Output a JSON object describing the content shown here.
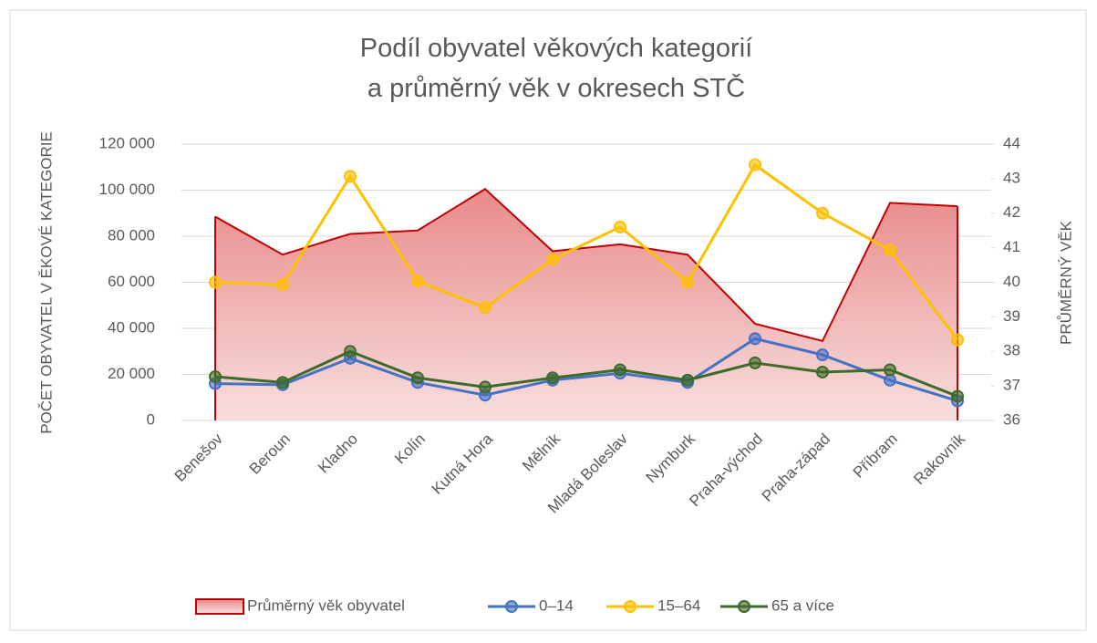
{
  "chart_data": {
    "type": "combo",
    "title": [
      "Podíl obyvatel věkových kategorií",
      "a průměrný  věk v okresech  STČ"
    ],
    "y_label": "POČET OBYVATEL V ĚKOVÉ KATEGORIE",
    "y2_label": "PRŮMĚRNÝ VĚK",
    "categories": [
      "Benešov",
      "Beroun",
      "Kladno",
      "Kolín",
      "Kutná Hora",
      "Mělník",
      "Mladá Boleslav",
      "Nymburk",
      "Praha-východ",
      "Praha-západ",
      "Příbram",
      "Rakovník"
    ],
    "ylim": [
      0,
      120000
    ],
    "yticks": [
      {
        "value": 0,
        "label": "0"
      },
      {
        "value": 20000,
        "label": "20 000"
      },
      {
        "value": 40000,
        "label": "40 000"
      },
      {
        "value": 60000,
        "label": "60 000"
      },
      {
        "value": 80000,
        "label": "80 000"
      },
      {
        "value": 100000,
        "label": "100 000"
      },
      {
        "value": 120000,
        "label": "120 000"
      }
    ],
    "y2lim": [
      36,
      44
    ],
    "y2ticks": [
      36,
      37,
      38,
      39,
      40,
      41,
      42,
      43,
      44
    ],
    "grid": true,
    "legend": "bottom",
    "series": [
      {
        "name": "Průměrný věk obyvatel",
        "type": "area",
        "axis": "y2",
        "color": "#c00000",
        "values": [
          41.9,
          40.8,
          41.4,
          41.5,
          42.7,
          40.9,
          41.1,
          40.8,
          38.8,
          38.3,
          42.3,
          42.2
        ]
      },
      {
        "name": "0–14",
        "type": "line",
        "color": "#4472c4",
        "values": [
          16000,
          15500,
          27000,
          16500,
          11000,
          17500,
          20500,
          16500,
          35500,
          28500,
          17500,
          8500
        ]
      },
      {
        "name": "15–64",
        "type": "line",
        "color": "#ffc000",
        "values": [
          60000,
          59000,
          106000,
          60500,
          49000,
          70000,
          84000,
          60000,
          111000,
          90000,
          74000,
          35000
        ]
      },
      {
        "name": "65 a více",
        "type": "line",
        "color": "#3f6b2a",
        "values": [
          19000,
          16500,
          30000,
          18500,
          14500,
          18500,
          22000,
          17500,
          25000,
          21000,
          22000,
          10500
        ]
      }
    ]
  }
}
